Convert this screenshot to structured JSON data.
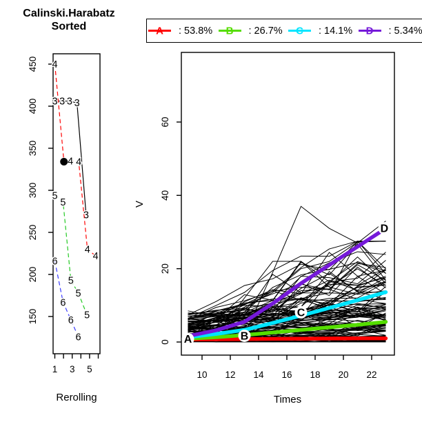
{
  "figure": {
    "left_title_line1": "Calinski.Harabatz",
    "left_title_line2": "Sorted"
  },
  "legend": {
    "items": [
      {
        "cluster": "A",
        "percent": ": 53.8%",
        "color": "#FF0000"
      },
      {
        "cluster": "B",
        "percent": ": 26.7%",
        "color": "#55DD00"
      },
      {
        "cluster": "C",
        "percent": ": 14.1%",
        "color": "#00E5FF"
      },
      {
        "cluster": "D",
        "percent": ": 5.34%",
        "color": "#7519D9"
      }
    ]
  },
  "chart_data": [
    {
      "id": "criterion-panel",
      "type": "line",
      "title": "Calinski.Harabatz Sorted",
      "xlabel": "Rerolling",
      "ylabel": "",
      "xlim": [
        1,
        6
      ],
      "ylim": [
        105,
        460
      ],
      "x_axis_ticks": [
        1,
        2,
        3,
        4,
        5,
        6
      ],
      "x_tick_labels": {
        "1": "1",
        "3": "3",
        "5": "5"
      },
      "y_axis_ticks": [
        150,
        200,
        250,
        300,
        350,
        400,
        450
      ],
      "grid": false,
      "series": [
        {
          "name": "3-clusters",
          "symbol": "3",
          "color": "#000000",
          "line": "solid",
          "points": [
            [
              1,
              406
            ],
            [
              1.85,
              406
            ],
            [
              2.7,
              406
            ],
            [
              3.55,
              404
            ],
            [
              4.6,
              271
            ]
          ]
        },
        {
          "name": "4-clusters",
          "symbol": "4",
          "color": "#FF0000",
          "line": "dashed",
          "points": [
            [
              1,
              450
            ],
            [
              2.05,
              334
            ],
            [
              2.8,
              335
            ],
            [
              3.75,
              334
            ],
            [
              4.75,
              230
            ],
            [
              5.7,
              222
            ]
          ]
        },
        {
          "name": "5-clusters",
          "symbol": "5",
          "color": "#22C922",
          "line": "dashed",
          "points": [
            [
              1,
              294
            ],
            [
              1.95,
              286
            ],
            [
              2.85,
              193
            ],
            [
              3.7,
              178
            ],
            [
              4.7,
              152
            ]
          ]
        },
        {
          "name": "6-clusters",
          "symbol": "6",
          "color": "#3A3AFF",
          "line": "dashed",
          "points": [
            [
              1,
              216
            ],
            [
              1.95,
              167
            ],
            [
              2.85,
              146
            ],
            [
              3.7,
              126
            ]
          ]
        }
      ],
      "selected_point": {
        "x": 2.05,
        "y": 334,
        "marker": "filled-black-dot"
      }
    },
    {
      "id": "trajectories-panel",
      "type": "line",
      "xlabel": "Times",
      "ylabel": "V",
      "xlim": [
        9,
        23
      ],
      "ylim": [
        0,
        78
      ],
      "x_axis_ticks": [
        10,
        12,
        14,
        16,
        18,
        20,
        22
      ],
      "y_axis_ticks": [
        0,
        20,
        40,
        60
      ],
      "grid": false,
      "times": [
        9,
        11,
        13,
        15,
        17,
        19,
        21,
        23
      ],
      "mean_trajectories": [
        {
          "cluster": "A",
          "color": "#FF0000",
          "percent": "53.8%",
          "values": [
            0.7,
            0.75,
            0.8,
            0.85,
            0.9,
            0.95,
            1.0,
            1.0
          ],
          "label_at": {
            "x": 9,
            "y": 0.8
          }
        },
        {
          "cluster": "B",
          "color": "#55DD00",
          "percent": "26.7%",
          "values": [
            0.9,
            1.3,
            1.9,
            2.6,
            3.3,
            4.0,
            4.7,
            5.5
          ],
          "label_at": {
            "x": 13,
            "y": 1.7
          }
        },
        {
          "cluster": "C",
          "color": "#00E5FF",
          "percent": "14.1%",
          "values": [
            1.3,
            2.2,
            3.3,
            5.2,
            7.2,
            9.3,
            11.4,
            13.6
          ],
          "label_at": {
            "x": 17,
            "y": 8.1
          }
        },
        {
          "cluster": "D",
          "color": "#7519D9",
          "percent": "5.34%",
          "values": [
            1.6,
            3.2,
            5.5,
            10.5,
            16.0,
            21.0,
            26.0,
            31.0
          ],
          "label_at": {
            "x": 22.9,
            "y": 31
          }
        }
      ],
      "individual_trajectories": {
        "style": "thin-black-lines",
        "count": 112,
        "seed": 1337,
        "value_range": [
          0,
          37
        ],
        "explicit_examples": [
          [
            1.2,
            1.5,
            2.0,
            19.0,
            37.0,
            31.0,
            27.0,
            33.0
          ],
          [
            8.5,
            7.0,
            5.5,
            6.5,
            8.0,
            9.5,
            11.0,
            12.0
          ],
          [
            0.5,
            2.0,
            12.0,
            22.0,
            22.0,
            15.0,
            13.0,
            14.0
          ]
        ]
      }
    }
  ]
}
